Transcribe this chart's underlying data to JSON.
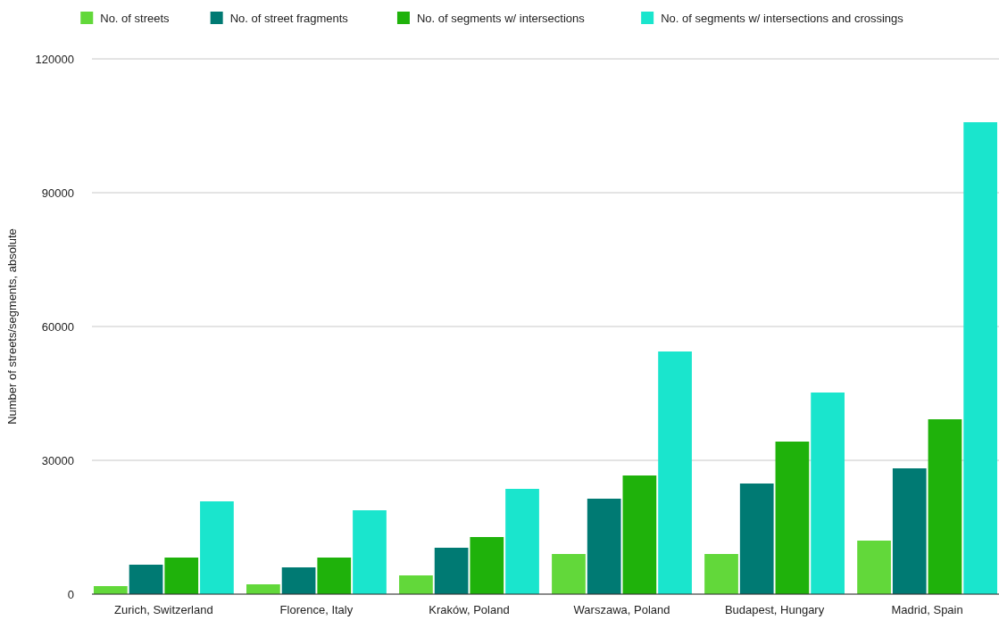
{
  "chart_data": {
    "type": "bar",
    "ylabel": "Number of streets/segments, absolute",
    "categories": [
      "Zurich, Switzerland",
      "Florence, Italy",
      "Kraków, Poland",
      "Warszawa, Poland",
      "Budapest, Hungary",
      "Madrid, Spain"
    ],
    "series": [
      {
        "name": "No. of streets",
        "color": "#62d83a",
        "values": [
          1800,
          2200,
          4200,
          9000,
          9000,
          12000
        ]
      },
      {
        "name": "No. of street fragments",
        "color": "#007a73",
        "values": [
          6600,
          6000,
          10400,
          21400,
          24800,
          28200
        ]
      },
      {
        "name": "No. of segments w/ intersections",
        "color": "#1fb20b",
        "values": [
          8200,
          8200,
          12800,
          26600,
          34200,
          39200
        ]
      },
      {
        "name": "No. of segments w/ intersections and crossings",
        "color": "#1ae5cd",
        "values": [
          20800,
          18800,
          23600,
          54400,
          45200,
          105800
        ]
      }
    ],
    "ylim": [
      0,
      120000
    ],
    "yticks": [
      0,
      30000,
      60000,
      90000,
      120000
    ],
    "grid": "y",
    "legend": "top"
  }
}
